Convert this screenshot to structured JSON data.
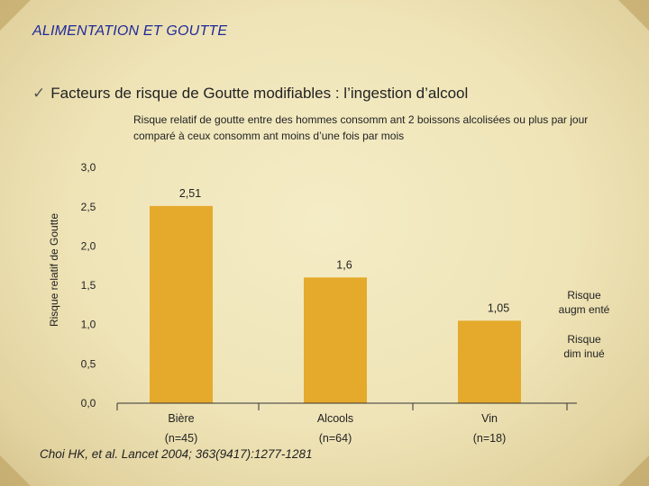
{
  "slide": {
    "title": "ALIMENTATION ET GOUTTE",
    "bullet_check": "✓",
    "bullet_text": "Facteurs de risque de Goutte modifiables : l’ingestion d’alcool",
    "reference": "Choi HK, et al. Lancet 2004; 363(9417):1277-1281"
  },
  "colors": {
    "bar": "#e5aa2c",
    "title": "#1f2a9a",
    "axis": "#333333"
  },
  "chart_data": {
    "type": "bar",
    "title": "Risque relatif de goutte entre des hommes consomm ant 2 boissons alcolisées ou plus par jour comparé à ceux consomm ant moins d’une fois par mois",
    "ylabel": "Risque relatif de Goutte",
    "xlabel": "",
    "ylim": [
      0,
      3
    ],
    "ytick_values": [
      0,
      0.5,
      1,
      1.5,
      2,
      2.5,
      3
    ],
    "ytick_labels": [
      "0,0",
      "0,5",
      "1,0",
      "1,5",
      "2,0",
      "2,5",
      "3,0"
    ],
    "categories": [
      {
        "name": "Bière",
        "n": "(n=45)"
      },
      {
        "name": "Alcools",
        "n": "(n=64)"
      },
      {
        "name": "Vin",
        "n": "(n=18)"
      }
    ],
    "values": [
      2.51,
      1.6,
      1.05
    ],
    "value_labels": [
      "2,51",
      "1,6",
      "1,05"
    ],
    "annotations": [
      "Risque augm enté",
      "Risque dim inué"
    ],
    "grid": false
  }
}
